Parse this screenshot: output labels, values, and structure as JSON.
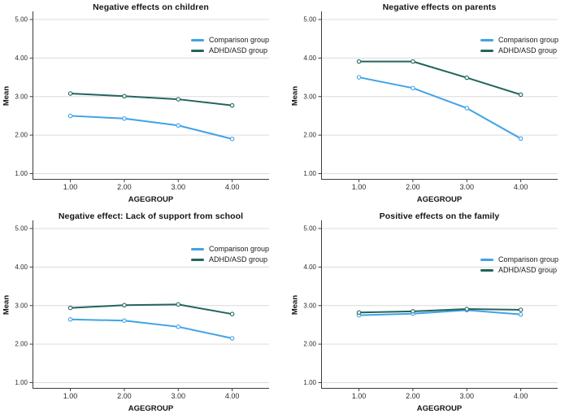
{
  "page": {
    "background": "#ffffff"
  },
  "palette": {
    "comparison": "#3fa3e6",
    "adhd_asd": "#22655c",
    "gridline": "#dcdcdc",
    "axis": "#3d3d3d",
    "tick_text": "#2a2a2a"
  },
  "chart_data": [
    {
      "type": "line",
      "title": "Negative effects on children",
      "xlabel": "AGEGROUP",
      "ylabel": "Mean",
      "categories": [
        "1.00",
        "2.00",
        "3.00",
        "4.00"
      ],
      "y_tick_labels": [
        "1.00",
        "2.00",
        "3.00",
        "4.00",
        "5.00"
      ],
      "ylim": [
        1.0,
        5.0
      ],
      "grid": "horizontal",
      "legend_position": "top-right-inside",
      "series": [
        {
          "name": "Comparison group",
          "color": "#3fa3e6",
          "marker": "circle",
          "values": [
            2.5,
            2.43,
            2.25,
            1.9
          ]
        },
        {
          "name": "ADHD/ASD group",
          "color": "#22655c",
          "marker": "circle",
          "values": [
            3.08,
            3.01,
            2.93,
            2.77
          ]
        }
      ]
    },
    {
      "type": "line",
      "title": "Negative effects on parents",
      "xlabel": "AGEGROUP",
      "ylabel": "Mean",
      "categories": [
        "1.00",
        "2.00",
        "3.00",
        "4.00"
      ],
      "y_tick_labels": [
        "1.00",
        "2.00",
        "3.00",
        "4.00",
        "5.00"
      ],
      "ylim": [
        1.0,
        5.0
      ],
      "grid": "horizontal",
      "legend_position": "top-right-inside",
      "series": [
        {
          "name": "Comparison group",
          "color": "#3fa3e6",
          "marker": "circle",
          "values": [
            3.5,
            3.22,
            2.7,
            1.91
          ]
        },
        {
          "name": "ADHD/ASD group",
          "color": "#22655c",
          "marker": "circle",
          "values": [
            3.91,
            3.91,
            3.49,
            3.05
          ]
        }
      ]
    },
    {
      "type": "line",
      "title": "Negative effect: Lack of support from school",
      "xlabel": "AGEGROUP",
      "ylabel": "Mean",
      "categories": [
        "1.00",
        "2.00",
        "3.00",
        "4.00"
      ],
      "y_tick_labels": [
        "1.00",
        "2.00",
        "3.00",
        "4.00",
        "5.00"
      ],
      "ylim": [
        1.0,
        5.0
      ],
      "grid": "horizontal",
      "legend_position": "top-right-inside",
      "series": [
        {
          "name": "Comparison group",
          "color": "#3fa3e6",
          "marker": "circle",
          "values": [
            2.64,
            2.61,
            2.45,
            2.15
          ]
        },
        {
          "name": "ADHD/ASD group",
          "color": "#22655c",
          "marker": "circle",
          "values": [
            2.94,
            3.01,
            3.03,
            2.78
          ]
        }
      ]
    },
    {
      "type": "line",
      "title": "Positive effects on the family",
      "xlabel": "AGEGROUP",
      "ylabel": "Mean",
      "categories": [
        "1.00",
        "2.00",
        "3.00",
        "4.00"
      ],
      "y_tick_labels": [
        "1.00",
        "2.00",
        "3.00",
        "4.00",
        "5.00"
      ],
      "ylim": [
        1.0,
        5.0
      ],
      "grid": "horizontal",
      "legend_position": "top-right-inside",
      "series": [
        {
          "name": "Comparison group",
          "color": "#3fa3e6",
          "marker": "circle",
          "values": [
            2.75,
            2.79,
            2.88,
            2.77
          ]
        },
        {
          "name": "ADHD/ASD group",
          "color": "#22655c",
          "marker": "circle",
          "values": [
            2.82,
            2.85,
            2.91,
            2.89
          ]
        }
      ]
    }
  ]
}
